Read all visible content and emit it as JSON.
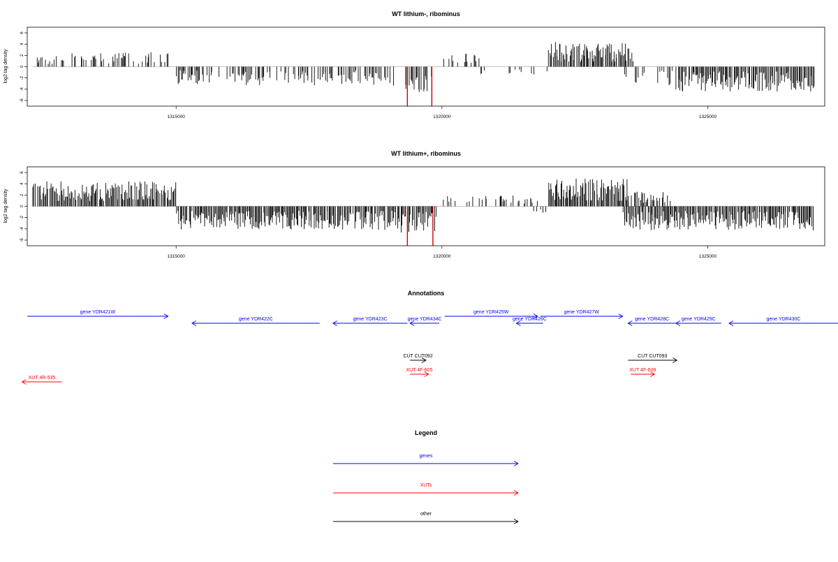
{
  "chart_data": [
    {
      "type": "bar",
      "title": "WT lithium-, ribominus",
      "ylabel": "log2 tag density",
      "xlabel": "",
      "xlim": [
        1312200,
        1327200
      ],
      "ylim": [
        -7,
        7
      ],
      "x_ticks": [
        1315000,
        1320000,
        1325000
      ],
      "x_tick_labels": [
        "1315000",
        "1320000",
        "1325000"
      ],
      "y_ticks": [
        -6,
        -4,
        -2,
        0,
        2,
        4,
        6
      ],
      "y_tick_labels": [
        "-6",
        "-4",
        "-2",
        "0",
        "2",
        "4",
        "6"
      ],
      "grid": false,
      "series": [
        {
          "color": "#000000",
          "segments": [
            {
              "start": 1312300,
              "end": 1314900,
              "value": 2.0,
              "density": 0.35
            },
            {
              "start": 1315000,
              "end": 1319100,
              "value": -2.6,
              "density": 0.5
            },
            {
              "start": 1319300,
              "end": 1319800,
              "value": -3.5,
              "density": 0.8
            },
            {
              "start": 1320000,
              "end": 1320700,
              "value": 1.8,
              "density": 0.3
            },
            {
              "start": 1320700,
              "end": 1322000,
              "value": -1.2,
              "density": 0.15
            },
            {
              "start": 1322000,
              "end": 1323600,
              "value": 3.5,
              "density": 0.9
            },
            {
              "start": 1323400,
              "end": 1324400,
              "value": -2.8,
              "density": 0.4
            },
            {
              "start": 1324400,
              "end": 1327000,
              "value": -3.4,
              "density": 0.9
            }
          ]
        },
        {
          "color": "#cc0000",
          "spikes": [
            {
              "x": 1319350,
              "value": -7.2
            },
            {
              "x": 1319810,
              "value": -7.0
            }
          ]
        }
      ]
    },
    {
      "type": "bar",
      "title": "WT lithium+, ribominus",
      "ylabel": "log2 tag density",
      "xlabel": "",
      "xlim": [
        1312200,
        1327200
      ],
      "ylim": [
        -7,
        7
      ],
      "x_ticks": [
        1315000,
        1320000,
        1325000
      ],
      "x_tick_labels": [
        "1315000",
        "1320000",
        "1325000"
      ],
      "y_ticks": [
        -6,
        -4,
        -2,
        0,
        2,
        4,
        6
      ],
      "y_tick_labels": [
        "-6",
        "-4",
        "-2",
        "0",
        "2",
        "4",
        "6"
      ],
      "grid": false,
      "series": [
        {
          "color": "#000000",
          "segments": [
            {
              "start": 1312300,
              "end": 1315000,
              "value": 3.4,
              "density": 0.9
            },
            {
              "start": 1315000,
              "end": 1319200,
              "value": -3.2,
              "density": 0.95
            },
            {
              "start": 1319200,
              "end": 1319900,
              "value": -3.6,
              "density": 0.9
            },
            {
              "start": 1320000,
              "end": 1321800,
              "value": 1.5,
              "density": 0.3
            },
            {
              "start": 1321600,
              "end": 1322000,
              "value": -1.0,
              "density": 0.2
            },
            {
              "start": 1322000,
              "end": 1323500,
              "value": 3.8,
              "density": 0.95
            },
            {
              "start": 1323300,
              "end": 1324300,
              "value": 2.0,
              "density": 0.5
            },
            {
              "start": 1323400,
              "end": 1327000,
              "value": -3.3,
              "density": 0.95
            }
          ]
        },
        {
          "color": "#cc0000",
          "spikes": [
            {
              "x": 1319350,
              "value": -7.0
            },
            {
              "x": 1319830,
              "value": -7.0
            }
          ]
        }
      ]
    }
  ],
  "annotations": {
    "title": "Annotations",
    "genes_color": "#0000ff",
    "xuts_color": "#ff0000",
    "other_color": "#000000",
    "features": [
      {
        "label": "gene YDR421W",
        "start": 1312200,
        "end": 1314850,
        "strand": "+",
        "kind": "gene",
        "row": 0
      },
      {
        "label": "gene YDR422C",
        "start": 1315300,
        "end": 1317700,
        "strand": "-",
        "kind": "gene",
        "row": 1
      },
      {
        "label": "gene YDR423C",
        "start": 1317950,
        "end": 1319350,
        "strand": "-",
        "kind": "gene",
        "row": 1
      },
      {
        "label": "gene YDR434C",
        "start": 1319400,
        "end": 1319950,
        "strand": "-",
        "kind": "gene",
        "row": 1
      },
      {
        "label": "gene YDR425W",
        "start": 1320050,
        "end": 1321800,
        "strand": "+",
        "kind": "gene",
        "row": 0
      },
      {
        "label": "gene YDR426C",
        "start": 1321400,
        "end": 1321900,
        "strand": "-",
        "kind": "gene",
        "row": 1
      },
      {
        "label": "gene YDR427W",
        "start": 1321850,
        "end": 1323400,
        "strand": "+",
        "kind": "gene",
        "row": 0
      },
      {
        "label": "gene YDR428C",
        "start": 1323500,
        "end": 1324400,
        "strand": "-",
        "kind": "gene",
        "row": 1
      },
      {
        "label": "gene YDR429C",
        "start": 1324400,
        "end": 1325250,
        "strand": "-",
        "kind": "gene",
        "row": 1
      },
      {
        "label": "gene YDR430C",
        "start": 1325400,
        "end": 1327600,
        "strand": "-",
        "kind": "gene",
        "row": 1
      },
      {
        "label": "CUT CUT092",
        "start": 1319400,
        "end": 1319700,
        "strand": "+",
        "kind": "other",
        "row": 2
      },
      {
        "label": "CUT CUT093",
        "start": 1323500,
        "end": 1324420,
        "strand": "+",
        "kind": "other",
        "row": 2
      },
      {
        "label": "XUT 4F-605",
        "start": 1319400,
        "end": 1319750,
        "strand": "+",
        "kind": "xut",
        "row": 3
      },
      {
        "label": "XUT 4F-609",
        "start": 1323550,
        "end": 1324000,
        "strand": "+",
        "kind": "xut",
        "row": 3
      },
      {
        "label": "XUT 4R-535",
        "start": 1312100,
        "end": 1312850,
        "strand": "-",
        "kind": "xut",
        "row": 4
      }
    ]
  },
  "legend": {
    "title": "Legend",
    "items": [
      {
        "label": "genes",
        "color": "#0000ff"
      },
      {
        "label": "XUTs",
        "color": "#ff0000"
      },
      {
        "label": "other",
        "color": "#000000"
      }
    ]
  }
}
